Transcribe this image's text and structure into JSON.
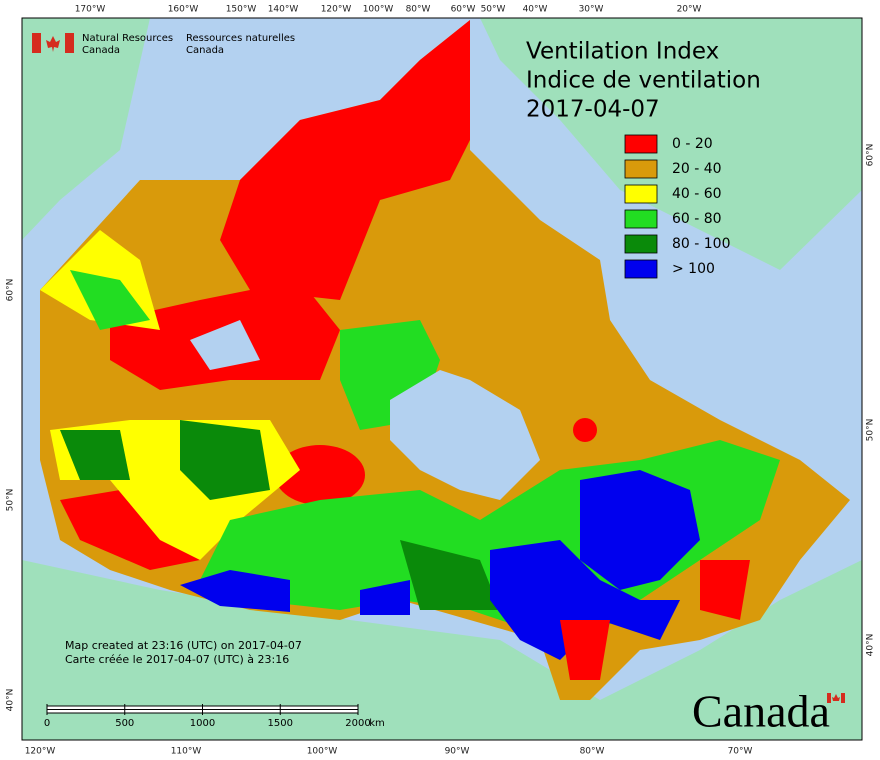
{
  "header": {
    "org_en": "Natural Resources",
    "org_en_2": "Canada",
    "org_fr": "Ressources naturelles",
    "org_fr_2": "Canada"
  },
  "title": [
    "Ventilation Index",
    "Indice de ventilation",
    "2017-04-07"
  ],
  "legend": [
    {
      "label": "0 - 20",
      "color": "#ff0000"
    },
    {
      "label": "20 - 40",
      "color": "#d99a0b"
    },
    {
      "label": "40 - 60",
      "color": "#ffff00"
    },
    {
      "label": "60 - 80",
      "color": "#22dd22"
    },
    {
      "label": "80 - 100",
      "color": "#0a8a0a"
    },
    {
      "label": "> 100",
      "color": "#0000ee"
    }
  ],
  "graticule": {
    "top": [
      "170°W",
      "160°W",
      "150°W",
      "140°W",
      "120°W",
      "100°W",
      "80°W",
      "60°W",
      "50°W",
      "40°W",
      "30°W",
      "20°W"
    ],
    "bottom": [
      "120°W",
      "110°W",
      "100°W",
      "90°W",
      "80°W",
      "70°W"
    ],
    "left": [
      "60°N",
      "50°N",
      "40°N"
    ],
    "right": [
      "60°N",
      "50°N",
      "40°N"
    ]
  },
  "notes": [
    "Map created at 23:16 (UTC) on 2017-04-07",
    "Carte créée le 2017-04-07 (UTC) à 23:16"
  ],
  "scale": {
    "ticks": [
      0,
      500,
      1000,
      1500,
      2000
    ],
    "unit": "km"
  },
  "wordmark": "Canada"
}
